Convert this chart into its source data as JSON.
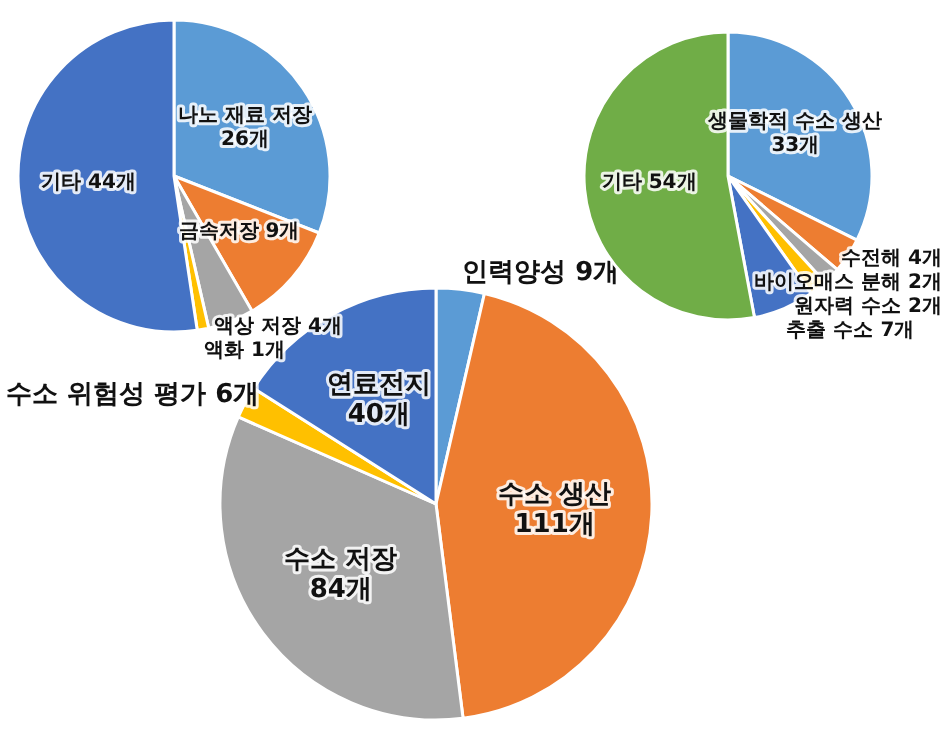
{
  "chart_data": [
    {
      "type": "pie",
      "categories": [
        "나노 재료 저장",
        "금속저장",
        "액상 저장",
        "액화",
        "기타"
      ],
      "values": [
        26,
        9,
        4,
        1,
        44
      ],
      "value_labels": [
        "26개",
        "9개",
        "4개",
        "1개",
        "44개"
      ],
      "colors": [
        "#5b9bd5",
        "#ed7d31",
        "#a5a5a5",
        "#ffc000",
        "#4472c4"
      ],
      "legend": false
    },
    {
      "type": "pie",
      "categories": [
        "생물학적 수소 생산",
        "수전해",
        "바이오매스 분해",
        "원자력 수소",
        "추출 수소",
        "기타"
      ],
      "values": [
        33,
        4,
        2,
        2,
        7,
        54
      ],
      "value_labels": [
        "33개",
        "4개",
        "2개",
        "2개",
        "7개",
        "54개"
      ],
      "colors": [
        "#5b9bd5",
        "#ed7d31",
        "#a5a5a5",
        "#ffc000",
        "#4472c4",
        "#70ad47"
      ],
      "legend": false
    },
    {
      "type": "pie",
      "categories": [
        "인력양성",
        "수소 생산",
        "수소 저장",
        "수소 위험성 평가",
        "연료전지"
      ],
      "values": [
        9,
        111,
        84,
        6,
        40
      ],
      "value_labels": [
        "9개",
        "111개",
        "84개",
        "6개",
        "40개"
      ],
      "colors": [
        "#5b9bd5",
        "#ed7d31",
        "#a5a5a5",
        "#ffc000",
        "#4472c4"
      ],
      "legend": false
    }
  ]
}
